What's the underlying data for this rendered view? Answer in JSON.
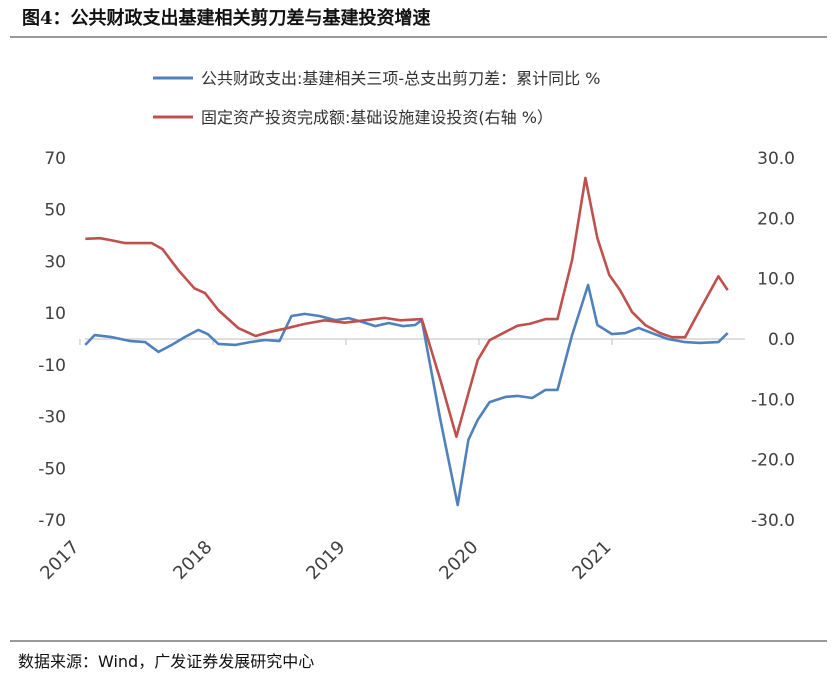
{
  "chart_data": {
    "type": "line",
    "title": "图4：公共财政支出基建相关剪刀差与基建投资增速",
    "source": "数据来源：Wind，广发证券发展研究中心",
    "xlim": [
      2017,
      2022
    ],
    "xticks": [
      2017,
      2018,
      2019,
      2020,
      2021
    ],
    "ylim": [
      -70,
      70
    ],
    "yticks": [
      70,
      50,
      30,
      10,
      -10,
      -30,
      -50,
      -70
    ],
    "y2lim": [
      -30,
      30
    ],
    "y2ticks": [
      {
        "value": 30,
        "label": "30.0"
      },
      {
        "value": 20,
        "label": "20.0"
      },
      {
        "value": 10,
        "label": "10.0"
      },
      {
        "value": 0,
        "label": "0.0"
      },
      {
        "value": -10,
        "label": "-10.0"
      },
      {
        "value": -20,
        "label": "-20.0"
      },
      {
        "value": -30,
        "label": "-30.0"
      }
    ],
    "legend": "top",
    "series": [
      {
        "name": "公共财政支出:基建相关三项-总支出剪刀差：累计同比 %",
        "color": "#4f81bd",
        "x": [
          2017.04,
          2017.11,
          2017.23,
          2017.38,
          2017.49,
          2017.59,
          2017.69,
          2017.79,
          2017.89,
          2017.96,
          2018.04,
          2018.17,
          2018.28,
          2018.39,
          2018.5,
          2018.59,
          2018.69,
          2018.8,
          2018.92,
          2019.02,
          2019.12,
          2019.22,
          2019.32,
          2019.43,
          2019.52,
          2019.57,
          2019.71,
          2019.84,
          2019.92,
          2019.99,
          2020.08,
          2020.2,
          2020.29,
          2020.4,
          2020.5,
          2020.59,
          2020.7,
          2020.82,
          2020.89,
          2021.0,
          2021.1,
          2021.2,
          2021.3,
          2021.42,
          2021.55,
          2021.66,
          2021.8,
          2021.87
        ],
        "values": [
          -2.3,
          1.5,
          0.8,
          -0.8,
          -1.2,
          -5,
          -2.3,
          0.8,
          3.5,
          1.9,
          -1.9,
          -2.3,
          -1.2,
          -0.4,
          -0.8,
          8.9,
          9.7,
          8.9,
          7.3,
          8.1,
          6.6,
          5,
          6.2,
          5,
          5.4,
          7.3,
          -31.3,
          -64.2,
          -39,
          -31.3,
          -24.4,
          -22.4,
          -22,
          -22.8,
          -19.7,
          -19.7,
          1.5,
          20.9,
          5.4,
          1.9,
          2.3,
          4.3,
          2.3,
          0,
          -1.2,
          -1.5,
          -1.2,
          2.3
        ]
      },
      {
        "name": "固定资产投资完成额:基础设施建设投资(右轴 %）",
        "color": "#c0504d",
        "axis": "y2",
        "x": [
          2017.04,
          2017.15,
          2017.23,
          2017.34,
          2017.45,
          2017.54,
          2017.62,
          2017.74,
          2017.86,
          2017.94,
          2018.04,
          2018.19,
          2018.32,
          2018.43,
          2018.54,
          2018.69,
          2018.84,
          2018.99,
          2019.14,
          2019.29,
          2019.41,
          2019.57,
          2019.71,
          2019.83,
          2019.92,
          2019.99,
          2020.08,
          2020.2,
          2020.29,
          2020.38,
          2020.5,
          2020.59,
          2020.7,
          2020.8,
          2020.89,
          2020.98,
          2021.06,
          2021.15,
          2021.25,
          2021.36,
          2021.45,
          2021.55,
          2021.66,
          2021.8,
          2021.87
        ],
        "values": [
          16.6,
          16.7,
          16.4,
          15.9,
          15.9,
          15.9,
          14.9,
          11.4,
          8.4,
          7.6,
          4.8,
          1.8,
          0.5,
          1.2,
          1.7,
          2.5,
          3.1,
          2.7,
          3.1,
          3.5,
          3.1,
          3.3,
          -6.8,
          -16.2,
          -9,
          -3.5,
          -0.2,
          1.2,
          2.2,
          2.5,
          3.3,
          3.3,
          13.1,
          26.7,
          16.7,
          10.6,
          8.1,
          4.5,
          2.3,
          1,
          0.3,
          0.3,
          4.8,
          10.4,
          8.1
        ]
      }
    ]
  }
}
